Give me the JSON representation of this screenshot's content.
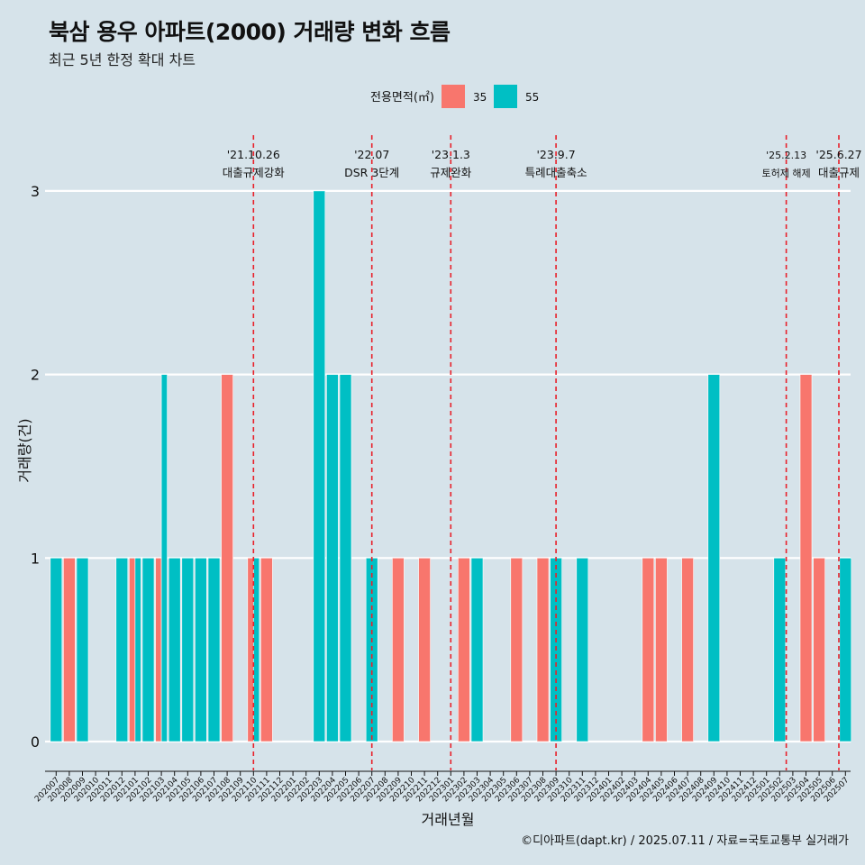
{
  "chart_data": {
    "type": "bar",
    "title": "북삼 용우 아파트(2000) 거래량 변화 흐름",
    "subtitle": "최근 5년 한정 확대 차트",
    "xlabel": "거래년월",
    "ylabel": "거래량(건)",
    "ylim": [
      0,
      3
    ],
    "yticks": [
      0,
      1,
      2,
      3
    ],
    "grid": true,
    "legend": {
      "title": "전용면적(㎡)",
      "position": "top",
      "items": [
        {
          "name": "35",
          "color": "#F8766D"
        },
        {
          "name": "55",
          "color": "#00BFC4"
        }
      ]
    },
    "categories": [
      "202007",
      "202008",
      "202009",
      "202010",
      "202011",
      "202012",
      "202101",
      "202102",
      "202103",
      "202104",
      "202105",
      "202106",
      "202107",
      "202108",
      "202109",
      "202110",
      "202111",
      "202112",
      "202201",
      "202202",
      "202203",
      "202204",
      "202205",
      "202206",
      "202207",
      "202208",
      "202209",
      "202210",
      "202211",
      "202212",
      "202301",
      "202302",
      "202303",
      "202304",
      "202305",
      "202306",
      "202307",
      "202308",
      "202309",
      "202310",
      "202311",
      "202312",
      "202401",
      "202402",
      "202403",
      "202404",
      "202405",
      "202406",
      "202407",
      "202408",
      "202409",
      "202410",
      "202411",
      "202412",
      "202501",
      "202502",
      "202503",
      "202504",
      "202505",
      "202506",
      "202507"
    ],
    "bars": [
      {
        "month": "202007",
        "area": "55",
        "value": 1
      },
      {
        "month": "202008",
        "area": "35",
        "value": 1
      },
      {
        "month": "202009",
        "area": "55",
        "value": 1
      },
      {
        "month": "202012",
        "area": "55",
        "value": 1
      },
      {
        "month": "202101",
        "area": "35",
        "value": 1
      },
      {
        "month": "202101",
        "area": "55",
        "value": 1
      },
      {
        "month": "202102",
        "area": "55",
        "value": 1
      },
      {
        "month": "202103",
        "area": "35",
        "value": 1
      },
      {
        "month": "202103",
        "area": "55",
        "value": 2
      },
      {
        "month": "202104",
        "area": "55",
        "value": 1
      },
      {
        "month": "202105",
        "area": "55",
        "value": 1
      },
      {
        "month": "202106",
        "area": "55",
        "value": 1
      },
      {
        "month": "202107",
        "area": "55",
        "value": 1
      },
      {
        "month": "202108",
        "area": "35",
        "value": 2
      },
      {
        "month": "202110",
        "area": "35",
        "value": 1
      },
      {
        "month": "202110",
        "area": "55",
        "value": 1
      },
      {
        "month": "202111",
        "area": "35",
        "value": 1
      },
      {
        "month": "202203",
        "area": "55",
        "value": 3
      },
      {
        "month": "202204",
        "area": "55",
        "value": 2
      },
      {
        "month": "202205",
        "area": "55",
        "value": 2
      },
      {
        "month": "202207",
        "area": "55",
        "value": 1
      },
      {
        "month": "202209",
        "area": "35",
        "value": 1
      },
      {
        "month": "202211",
        "area": "35",
        "value": 1
      },
      {
        "month": "202302",
        "area": "35",
        "value": 1
      },
      {
        "month": "202303",
        "area": "55",
        "value": 1
      },
      {
        "month": "202306",
        "area": "35",
        "value": 1
      },
      {
        "month": "202308",
        "area": "35",
        "value": 1
      },
      {
        "month": "202309",
        "area": "55",
        "value": 1
      },
      {
        "month": "202311",
        "area": "55",
        "value": 1
      },
      {
        "month": "202404",
        "area": "35",
        "value": 1
      },
      {
        "month": "202405",
        "area": "35",
        "value": 1
      },
      {
        "month": "202407",
        "area": "35",
        "value": 1
      },
      {
        "month": "202409",
        "area": "55",
        "value": 2
      },
      {
        "month": "202502",
        "area": "55",
        "value": 1
      },
      {
        "month": "202504",
        "area": "35",
        "value": 2
      },
      {
        "month": "202505",
        "area": "35",
        "value": 1
      },
      {
        "month": "202507",
        "area": "55",
        "value": 1
      }
    ],
    "events": [
      {
        "x": 15.0,
        "date": "'21.10.26",
        "label": "대출규제강화"
      },
      {
        "x": 24.0,
        "date": "'22.07",
        "label": "DSR 3단계"
      },
      {
        "x": 30.0,
        "date": "'23.1.3",
        "label": "규제완화"
      },
      {
        "x": 38.0,
        "date": "'23.9.7",
        "label": "특례대출축소"
      },
      {
        "x": 55.5,
        "date": "'25.2.13",
        "label": "토허제 해제"
      },
      {
        "x": 59.5,
        "date": "'25.6.27",
        "label": "대출규제"
      }
    ]
  },
  "caption": "©디아파트(dapt.kr) / 2025.07.11 / 자료=국토교통부 실거래가"
}
